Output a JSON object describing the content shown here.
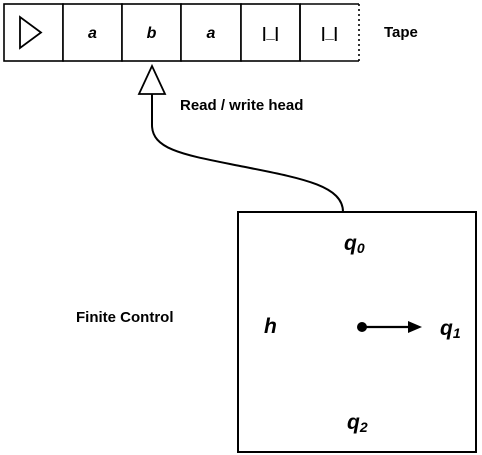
{
  "tape": {
    "label": "Tape",
    "cells": [
      {
        "symbol": "",
        "icon": "left-end-marker-triangle-icon"
      },
      {
        "symbol": "a"
      },
      {
        "symbol": "b"
      },
      {
        "symbol": "a"
      },
      {
        "symbol": "|_|"
      },
      {
        "symbol": "|_|"
      }
    ]
  },
  "head": {
    "label": "Read / write head",
    "icon": "head-arrow-triangle-icon"
  },
  "control": {
    "label": "Finite Control",
    "states": {
      "q0": {
        "base": "q",
        "sub": "0"
      },
      "q1": {
        "base": "q",
        "sub": "1"
      },
      "q2": {
        "base": "q",
        "sub": "2"
      },
      "h": {
        "base": "h"
      }
    },
    "pointer_icon": "state-pointer-arrow-icon"
  }
}
